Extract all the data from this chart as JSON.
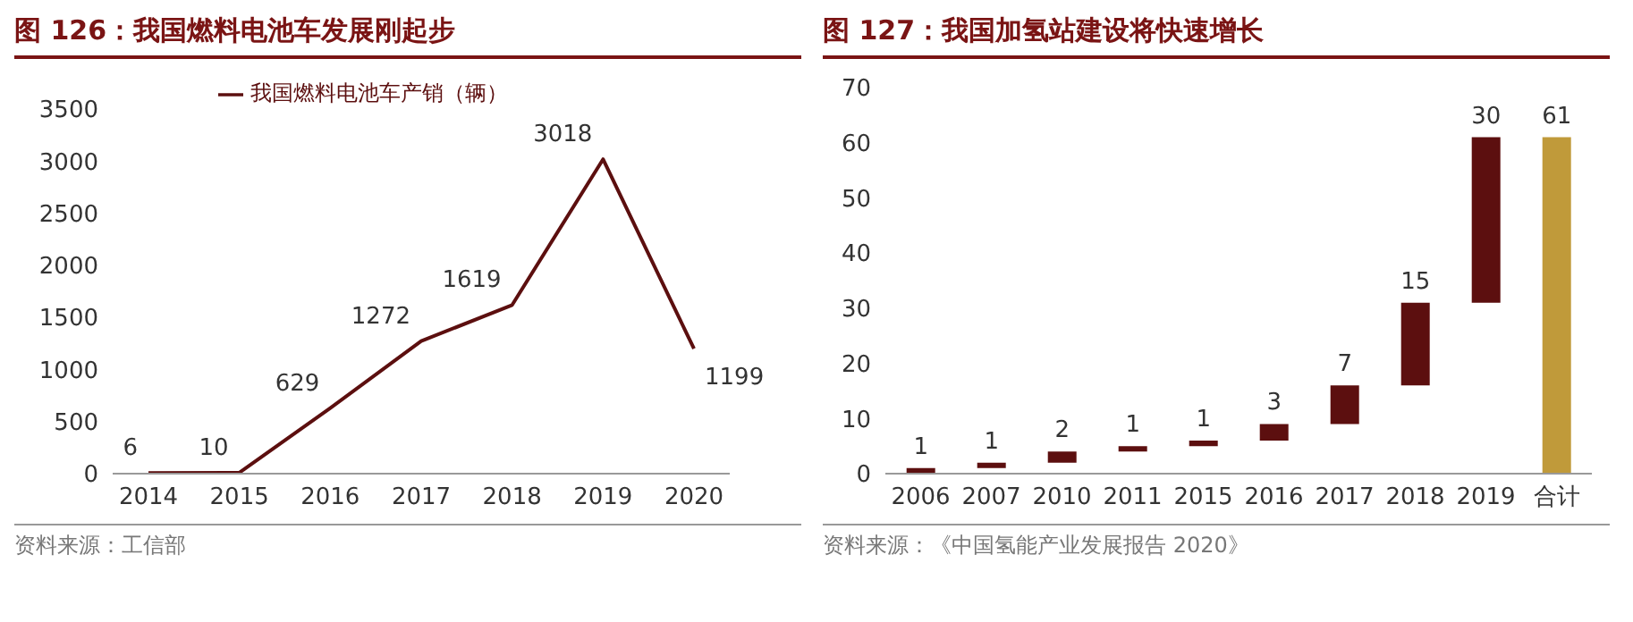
{
  "chart_data": [
    {
      "type": "line",
      "title": "图 126：我国燃料电池车发展刚起步",
      "categories": [
        "2014",
        "2015",
        "2016",
        "2017",
        "2018",
        "2019",
        "2020"
      ],
      "series": [
        {
          "name": "我国燃料电池车产销（辆）",
          "color": "#5c0f0f",
          "values": [
            6,
            10,
            629,
            1272,
            1619,
            3018,
            1199
          ]
        }
      ],
      "ylim": [
        0,
        3500
      ],
      "yticks": [
        0,
        500,
        1000,
        1500,
        2000,
        2500,
        3000,
        3500
      ],
      "grid": false,
      "legend": "top",
      "marker": "none",
      "line_style": "solid",
      "data_labels": true,
      "annotations": [
        "资料来源：工信部"
      ]
    },
    {
      "type": "bar",
      "title": "图 127：我国加氢站建设将快速增长",
      "categories": [
        "2006",
        "2007",
        "2010",
        "2011",
        "2015",
        "2016",
        "2017",
        "2018",
        "2019",
        "合计"
      ],
      "values": [
        1,
        1,
        2,
        1,
        1,
        3,
        7,
        15,
        30,
        61
      ],
      "base": [
        0,
        1,
        2,
        4,
        5,
        6,
        9,
        16,
        31,
        0
      ],
      "colors": [
        "#5c0f0f",
        "#5c0f0f",
        "#5c0f0f",
        "#5c0f0f",
        "#5c0f0f",
        "#5c0f0f",
        "#5c0f0f",
        "#5c0f0f",
        "#5c0f0f",
        "#c09a3a"
      ],
      "ylim": [
        0,
        70
      ],
      "yticks": [
        0,
        10,
        20,
        30,
        40,
        50,
        60,
        70
      ],
      "grid": false,
      "legend": false,
      "data_labels": true,
      "annotations": [
        "资料来源：《中国氢能产业发展报告 2020》"
      ]
    }
  ]
}
